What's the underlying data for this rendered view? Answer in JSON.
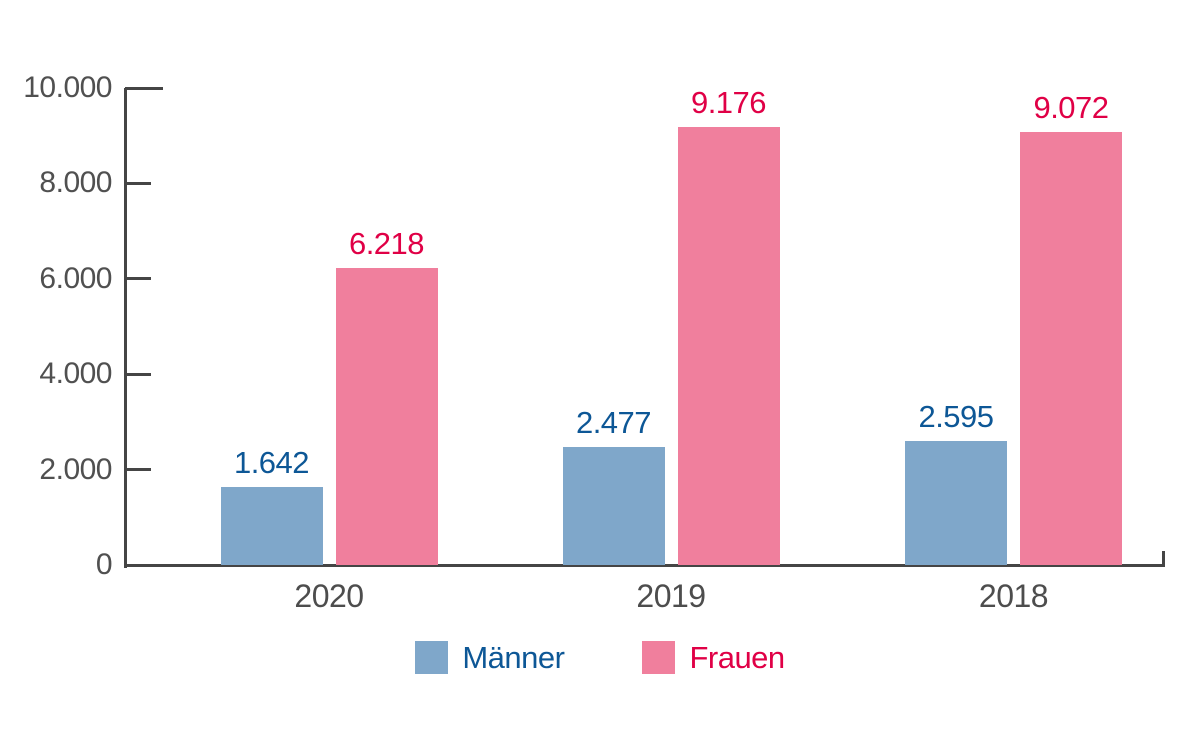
{
  "chart_data": {
    "type": "bar",
    "title": "",
    "categories": [
      "2020",
      "2019",
      "2018"
    ],
    "series": [
      {
        "name": "Männer",
        "key": "maenner",
        "bar_color": "#7fa7ca",
        "label_color": "#0d5796",
        "values": [
          1642,
          2477,
          2595
        ],
        "value_labels": [
          "1.642",
          "2.477",
          "2.595"
        ]
      },
      {
        "name": "Frauen",
        "key": "frauen",
        "bar_color": "#f07f9d",
        "label_color": "#e00046",
        "values": [
          6218,
          9176,
          9072
        ],
        "value_labels": [
          "6.218",
          "9.176",
          "9.072"
        ]
      }
    ],
    "y_axis": {
      "min": 0,
      "max": 10000,
      "ticks": [
        {
          "value": 0,
          "label": "0"
        },
        {
          "value": 2000,
          "label": "2.000"
        },
        {
          "value": 4000,
          "label": "4.000"
        },
        {
          "value": 6000,
          "label": "6.000"
        },
        {
          "value": 8000,
          "label": "8.000"
        },
        {
          "value": 10000,
          "label": "10.000"
        }
      ]
    },
    "legend_position": "bottom",
    "grid": false,
    "colors": {
      "axis": "#454545",
      "tick_label": "#505050",
      "category_label": "#4d4d4d",
      "background": "#ffffff"
    }
  }
}
